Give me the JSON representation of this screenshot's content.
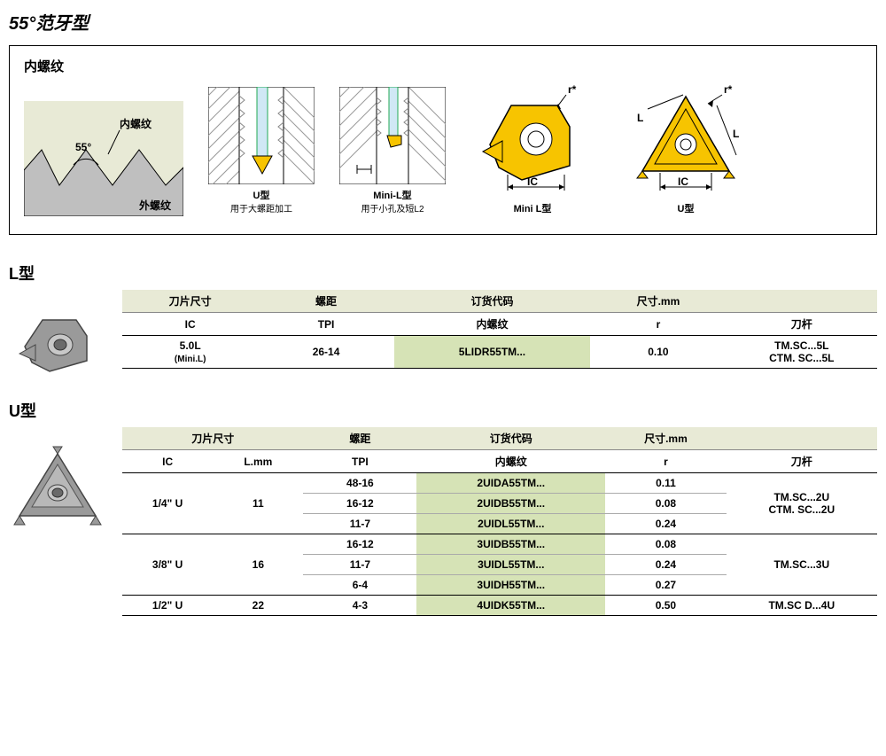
{
  "page_title": "55°范牙型",
  "diagram_box": {
    "title": "内螺纹",
    "thread_profile": {
      "angle_label": "55°",
      "inner_label": "内螺纹",
      "outer_label": "外螺纹",
      "bg_color": "#e8ead6",
      "fg_color": "#bfbfbf"
    },
    "u_type_img": {
      "caption": "U型",
      "sub": "用于大螺距加工"
    },
    "mini_l_img": {
      "caption": "Mini-L型",
      "sub": "用于小孔及短L2"
    },
    "mini_l_insert": {
      "caption": "Mini L型",
      "r_label": "r*",
      "ic_label": "IC",
      "fill": "#f7c400"
    },
    "u_insert": {
      "caption": "U型",
      "r_label": "r*",
      "ic_label": "IC",
      "l_label": "L",
      "fill": "#f7c400"
    }
  },
  "section_l": {
    "title": "L型",
    "headers_top": {
      "size": "刀片尺寸",
      "pitch": "螺距",
      "code": "订货代码",
      "dim": "尺寸.mm",
      "holder": ""
    },
    "headers_sub": {
      "ic": "IC",
      "tpi": "TPI",
      "inner": "内螺纹",
      "r": "r",
      "holder": "刀杆"
    },
    "row": {
      "ic": "5.0L",
      "ic_sub": "(Mini.L)",
      "tpi": "26-14",
      "code": "5LIDR55TM...",
      "r": "0.10",
      "holder1": "TM.SC...5L",
      "holder2": "CTM. SC...5L"
    },
    "col_widths": [
      "18%",
      "18%",
      "26%",
      "18%",
      "20%"
    ]
  },
  "section_u": {
    "title": "U型",
    "headers_top": {
      "size": "刀片尺寸",
      "pitch": "螺距",
      "code": "订货代码",
      "dim": "尺寸.mm",
      "holder": ""
    },
    "headers_sub": {
      "ic": "IC",
      "lmm": "L.mm",
      "tpi": "TPI",
      "inner": "内螺纹",
      "r": "r",
      "holder": "刀杆"
    },
    "groups": [
      {
        "ic": "1/4\" U",
        "lmm": "11",
        "rows": [
          {
            "tpi": "48-16",
            "code": "2UIDA55TM...",
            "r": "0.11"
          },
          {
            "tpi": "16-12",
            "code": "2UIDB55TM...",
            "r": "0.08"
          },
          {
            "tpi": "11-7",
            "code": "2UIDL55TM...",
            "r": "0.24"
          }
        ],
        "holder1": "TM.SC...2U",
        "holder2": "CTM. SC...2U"
      },
      {
        "ic": "3/8\" U",
        "lmm": "16",
        "rows": [
          {
            "tpi": "16-12",
            "code": "3UIDB55TM...",
            "r": "0.08"
          },
          {
            "tpi": "11-7",
            "code": "3UIDL55TM...",
            "r": "0.24"
          },
          {
            "tpi": "6-4",
            "code": "3UIDH55TM...",
            "r": "0.27"
          }
        ],
        "holder1": "TM.SC...3U",
        "holder2": ""
      },
      {
        "ic": "1/2\" U",
        "lmm": "22",
        "rows": [
          {
            "tpi": "4-3",
            "code": "4UIDK55TM...",
            "r": "0.50"
          }
        ],
        "holder1": "TM.SC D...4U",
        "holder2": ""
      }
    ],
    "col_widths": [
      "12%",
      "12%",
      "15%",
      "25%",
      "16%",
      "20%"
    ]
  },
  "colors": {
    "header_bg": "#e8ead6",
    "code_bg": "#d6e3b6",
    "insert_fill": "#8a8a8a",
    "insert_edge": "#555"
  }
}
